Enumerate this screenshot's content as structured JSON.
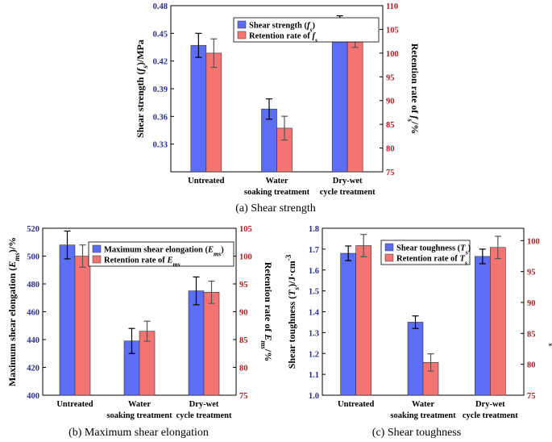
{
  "colors": {
    "blue": "#5b6ef5",
    "red": "#f47373",
    "left_axis": "#2b2f8f",
    "right_axis": "#b11d24"
  },
  "chart_data": [
    {
      "type": "bar",
      "caption": "(a) Shear strength",
      "categories": [
        [
          "Untreated"
        ],
        [
          "Water",
          "soaking treatment"
        ],
        [
          "Dry-wet",
          "cycle treatment"
        ]
      ],
      "ylabel_left": "Shear strength (fs)/MPa",
      "ylabel_right": "Retention rate of fs/%",
      "ylim_left": [
        0.3,
        0.48
      ],
      "yticks_left": [
        "0.33",
        "0.36",
        "0.39",
        "0.42",
        "0.45",
        "0.48"
      ],
      "ylim_right": [
        75,
        110
      ],
      "yticks_right": [
        "75",
        "80",
        "85",
        "90",
        "95",
        "100",
        "105",
        "110"
      ],
      "series": [
        {
          "name": "Shear strength (fs)",
          "axis": "left",
          "values": [
            0.437,
            0.368,
            0.455
          ],
          "errors": [
            0.013,
            0.011,
            0.014
          ]
        },
        {
          "name": "Retention rate of fs",
          "axis": "right",
          "values": [
            100,
            84.2,
            104.2
          ],
          "errors": [
            3.0,
            2.5,
            3.0
          ]
        }
      ]
    },
    {
      "type": "bar",
      "caption": "(b) Maximum shear elongation",
      "categories": [
        [
          "Untreated"
        ],
        [
          "Water",
          "soaking treatment"
        ],
        [
          "Dry-wet",
          "cycle treatment"
        ]
      ],
      "ylabel_left": "Maximum shear elongation (Ems)/%",
      "ylabel_right": "Retention rate of Ems/%",
      "ylim_left": [
        400,
        520
      ],
      "yticks_left": [
        "400",
        "420",
        "440",
        "460",
        "480",
        "500",
        "520"
      ],
      "ylim_right": [
        75,
        105
      ],
      "yticks_right": [
        "75",
        "80",
        "85",
        "90",
        "95",
        "100",
        "105"
      ],
      "series": [
        {
          "name": "Maximum shear elongation (Ems)",
          "axis": "left",
          "values": [
            508,
            439,
            475
          ],
          "errors": [
            10,
            9,
            10
          ]
        },
        {
          "name": "Retention rate of Ems",
          "axis": "right",
          "values": [
            100,
            86.5,
            93.5
          ],
          "errors": [
            2.0,
            1.8,
            2.0
          ]
        }
      ]
    },
    {
      "type": "bar",
      "caption": "(c) Shear toughness",
      "categories": [
        [
          "Untreated"
        ],
        [
          "Water",
          "soaking treatment"
        ],
        [
          "Dry-wet",
          "cycle treatment"
        ]
      ],
      "ylabel_left": "Shear toughness (Ts)/J·cm-3",
      "ylabel_right": "Retention rate of Ts/%",
      "ylim_left": [
        1.0,
        1.8
      ],
      "yticks_left": [
        "1.0",
        "1.1",
        "1.2",
        "1.3",
        "1.4",
        "1.5",
        "1.6",
        "1.7",
        "1.8"
      ],
      "ylim_right": [
        75,
        102
      ],
      "yticks_right": [
        "75",
        "80",
        "85",
        "90",
        "95",
        "100"
      ],
      "series": [
        {
          "name": "Shear toughness (Ts)",
          "axis": "left",
          "values": [
            1.68,
            1.35,
            1.665
          ],
          "errors": [
            0.035,
            0.03,
            0.035
          ]
        },
        {
          "name": "Retention rate of Ts",
          "axis": "right",
          "values": [
            99.2,
            80.3,
            98.9
          ],
          "errors": [
            1.8,
            1.4,
            1.8
          ]
        }
      ]
    }
  ]
}
